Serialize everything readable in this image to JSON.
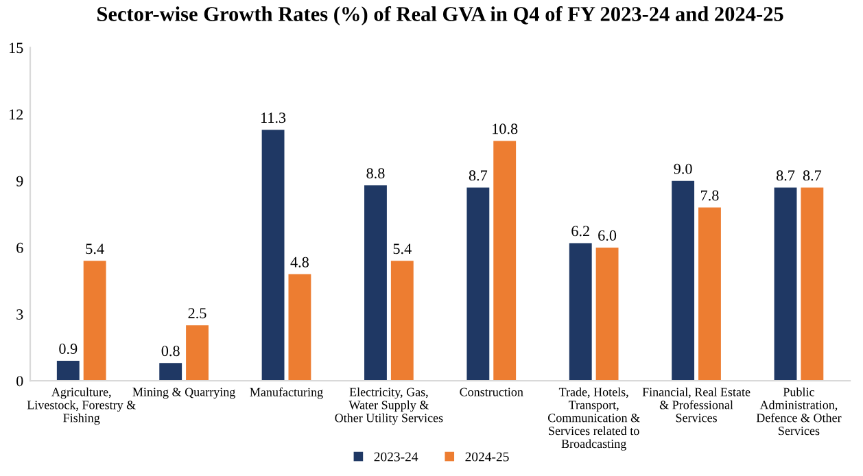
{
  "chart_data": {
    "type": "bar",
    "title": "Sector-wise Growth Rates (%) of Real GVA in Q4 of FY 2023-24 and 2024-25",
    "categories": [
      "Agriculture,\nLivestock, Forestry &\nFishing",
      "Mining & Quarrying",
      "Manufacturing",
      "Electricity, Gas,\nWater Supply &\nOther Utility Services",
      "Construction",
      "Trade, Hotels,\nTransport,\nCommunication &\nServices related to\nBroadcasting",
      "Financial, Real Estate\n& Professional\nServices",
      "Public\nAdministration,\nDefence & Other\nServices"
    ],
    "series": [
      {
        "name": "2023-24",
        "color": "#1f3864",
        "values": [
          0.9,
          0.8,
          11.3,
          8.8,
          8.7,
          6.2,
          9.0,
          8.7
        ],
        "value_labels": [
          "0.9",
          "0.8",
          "11.3",
          "8.8",
          "8.7",
          "6.2",
          "9.0",
          "8.7"
        ]
      },
      {
        "name": "2024-25",
        "color": "#ed7d31",
        "values": [
          5.4,
          2.5,
          4.8,
          5.4,
          10.8,
          6.0,
          7.8,
          8.7
        ],
        "value_labels": [
          "5.4",
          "2.5",
          "4.8",
          "5.4",
          "10.8",
          "6.0",
          "7.8",
          "8.7"
        ]
      }
    ],
    "ylim": [
      0,
      15
    ],
    "yticks": [
      0,
      3,
      6,
      9,
      12,
      15
    ],
    "grid": false,
    "legend": "bottom"
  }
}
